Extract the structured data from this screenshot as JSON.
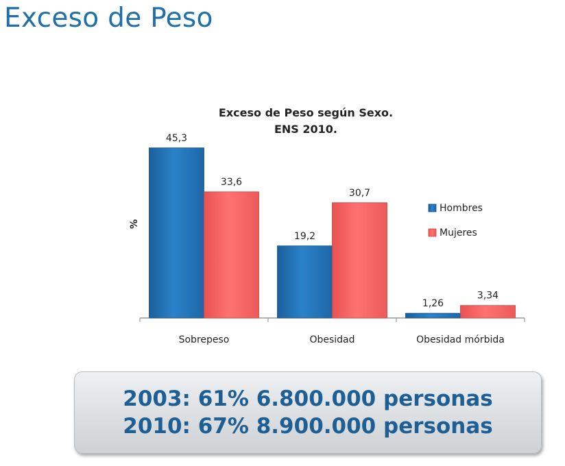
{
  "slide": {
    "title": "Exceso de Peso"
  },
  "chart_data": {
    "type": "bar",
    "title": "Exceso de Peso según Sexo.",
    "subtitle": "ENS 2010.",
    "ylabel": "%",
    "xlabel": "",
    "categories": [
      "Sobrepeso",
      "Obesidad",
      "Obesidad mórbida"
    ],
    "series": [
      {
        "name": "Hombres",
        "values": [
          45.3,
          19.2,
          1.26
        ],
        "labels": [
          "45,3",
          "19,2",
          "1,26"
        ],
        "color": "#1f6db0"
      },
      {
        "name": "Mujeres",
        "values": [
          33.6,
          30.7,
          3.34
        ],
        "labels": [
          "33,6",
          "30,7",
          "3,34"
        ],
        "color": "#f06060"
      }
    ],
    "ylim": [
      0,
      50
    ],
    "grid": false,
    "legend_position": "right"
  },
  "summary": {
    "line1": "2003: 61% 6.800.000 personas",
    "line2": "2010: 67% 8.900.000 personas",
    "color": "#1d5f94"
  }
}
